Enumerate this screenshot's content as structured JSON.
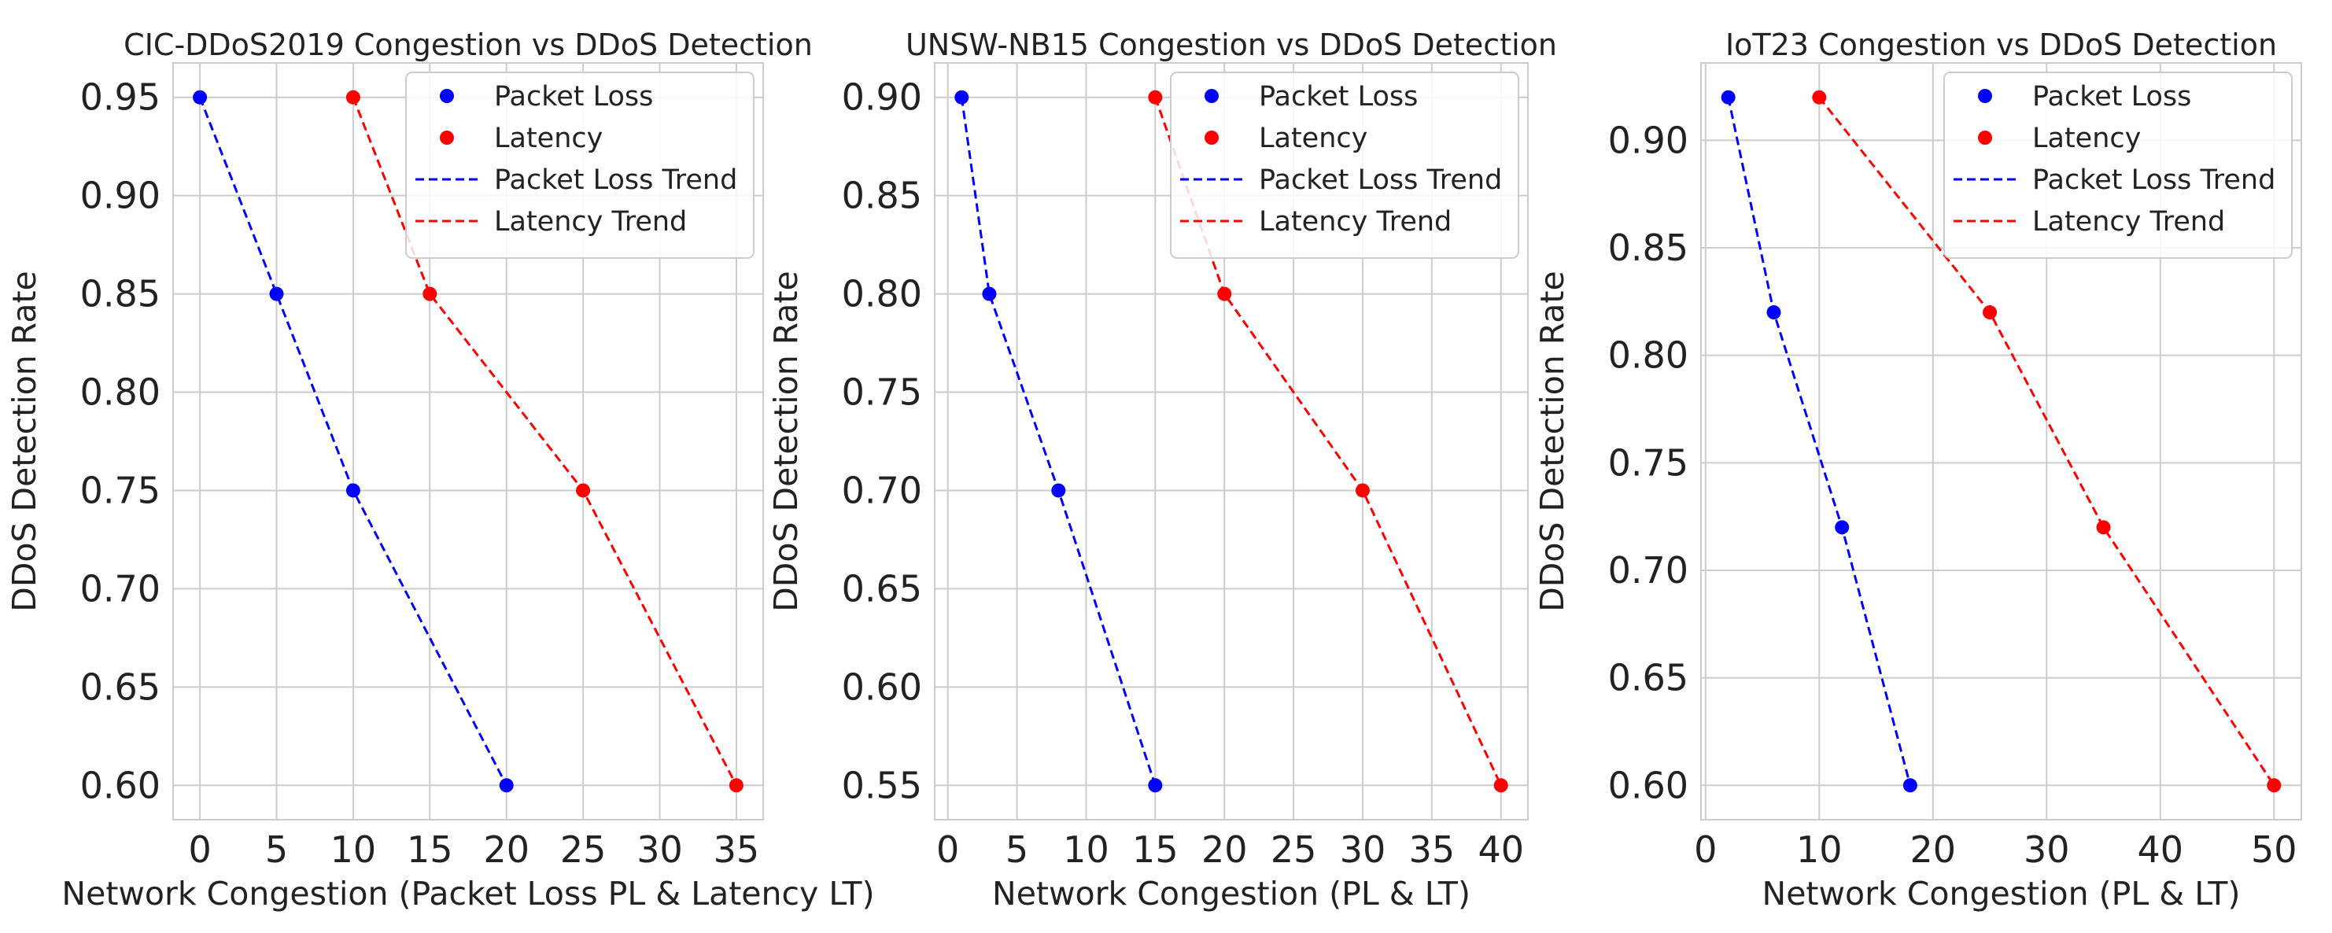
{
  "chart_data": [
    {
      "type": "line",
      "title": "CIC-DDoS2019 Congestion vs DDoS Detection",
      "xlabel": "Network Congestion (Packet Loss PL & Latency LT)",
      "ylabel": "DDoS Detection Rate",
      "xlim": [
        -1.75,
        36.75
      ],
      "ylim": [
        0.5825,
        0.9675
      ],
      "xticks": [
        0,
        5,
        10,
        15,
        20,
        25,
        30,
        35
      ],
      "xtick_labels": [
        "0",
        "5",
        "10",
        "15",
        "20",
        "25",
        "30",
        "35"
      ],
      "yticks": [
        0.6,
        0.65,
        0.7,
        0.75,
        0.8,
        0.85,
        0.9,
        0.95
      ],
      "ytick_labels": [
        "0.60",
        "0.65",
        "0.70",
        "0.75",
        "0.80",
        "0.85",
        "0.90",
        "0.95"
      ],
      "grid": true,
      "legend": [
        "Packet Loss",
        "Latency",
        "Packet Loss Trend",
        "Latency Trend"
      ],
      "series": [
        {
          "name": "Packet Loss",
          "color": "#0000ff",
          "x": [
            0,
            5,
            10,
            20
          ],
          "y": [
            0.95,
            0.85,
            0.75,
            0.6
          ]
        },
        {
          "name": "Latency",
          "color": "#ff0000",
          "x": [
            10,
            15,
            25,
            35
          ],
          "y": [
            0.95,
            0.85,
            0.75,
            0.6
          ]
        }
      ]
    },
    {
      "type": "line",
      "title": "UNSW-NB15 Congestion vs DDoS Detection",
      "xlabel": "Network Congestion (PL & LT)",
      "ylabel": "DDoS Detection Rate",
      "xlim": [
        -0.95,
        41.95
      ],
      "ylim": [
        0.5325,
        0.9175
      ],
      "xticks": [
        0,
        5,
        10,
        15,
        20,
        25,
        30,
        35,
        40
      ],
      "xtick_labels": [
        "0",
        "5",
        "10",
        "15",
        "20",
        "25",
        "30",
        "35",
        "40"
      ],
      "yticks": [
        0.55,
        0.6,
        0.65,
        0.7,
        0.75,
        0.8,
        0.85,
        0.9
      ],
      "ytick_labels": [
        "0.55",
        "0.60",
        "0.65",
        "0.70",
        "0.75",
        "0.80",
        "0.85",
        "0.90"
      ],
      "grid": true,
      "legend": [
        "Packet Loss",
        "Latency",
        "Packet Loss Trend",
        "Latency Trend"
      ],
      "series": [
        {
          "name": "Packet Loss",
          "color": "#0000ff",
          "x": [
            1,
            3,
            8,
            15
          ],
          "y": [
            0.9,
            0.8,
            0.7,
            0.55
          ]
        },
        {
          "name": "Latency",
          "color": "#ff0000",
          "x": [
            15,
            20,
            30,
            40
          ],
          "y": [
            0.9,
            0.8,
            0.7,
            0.55
          ]
        }
      ]
    },
    {
      "type": "line",
      "title": "IoT23 Congestion vs DDoS Detection",
      "xlabel": "Network Congestion (PL & LT)",
      "ylabel": "DDoS Detection Rate",
      "xlim": [
        -0.4,
        52.4
      ],
      "ylim": [
        0.584,
        0.936
      ],
      "xticks": [
        0,
        10,
        20,
        30,
        40,
        50
      ],
      "xtick_labels": [
        "0",
        "10",
        "20",
        "30",
        "40",
        "50"
      ],
      "yticks": [
        0.6,
        0.65,
        0.7,
        0.75,
        0.8,
        0.85,
        0.9
      ],
      "ytick_labels": [
        "0.60",
        "0.65",
        "0.70",
        "0.75",
        "0.80",
        "0.85",
        "0.90"
      ],
      "grid": true,
      "legend": [
        "Packet Loss",
        "Latency",
        "Packet Loss Trend",
        "Latency Trend"
      ],
      "series": [
        {
          "name": "Packet Loss",
          "color": "#0000ff",
          "x": [
            2,
            6,
            12,
            18
          ],
          "y": [
            0.92,
            0.82,
            0.72,
            0.6
          ]
        },
        {
          "name": "Latency",
          "color": "#ff0000",
          "x": [
            10,
            25,
            35,
            50
          ],
          "y": [
            0.92,
            0.82,
            0.72,
            0.6
          ]
        }
      ]
    }
  ]
}
